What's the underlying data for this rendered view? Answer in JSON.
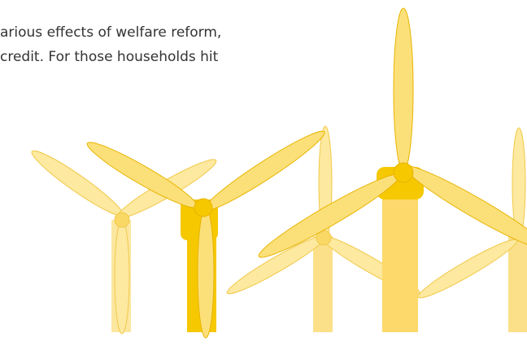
{
  "text": {
    "lines": [
      "arious effects of welfare reform,",
      "credit. For those households hit"
    ]
  }
}
